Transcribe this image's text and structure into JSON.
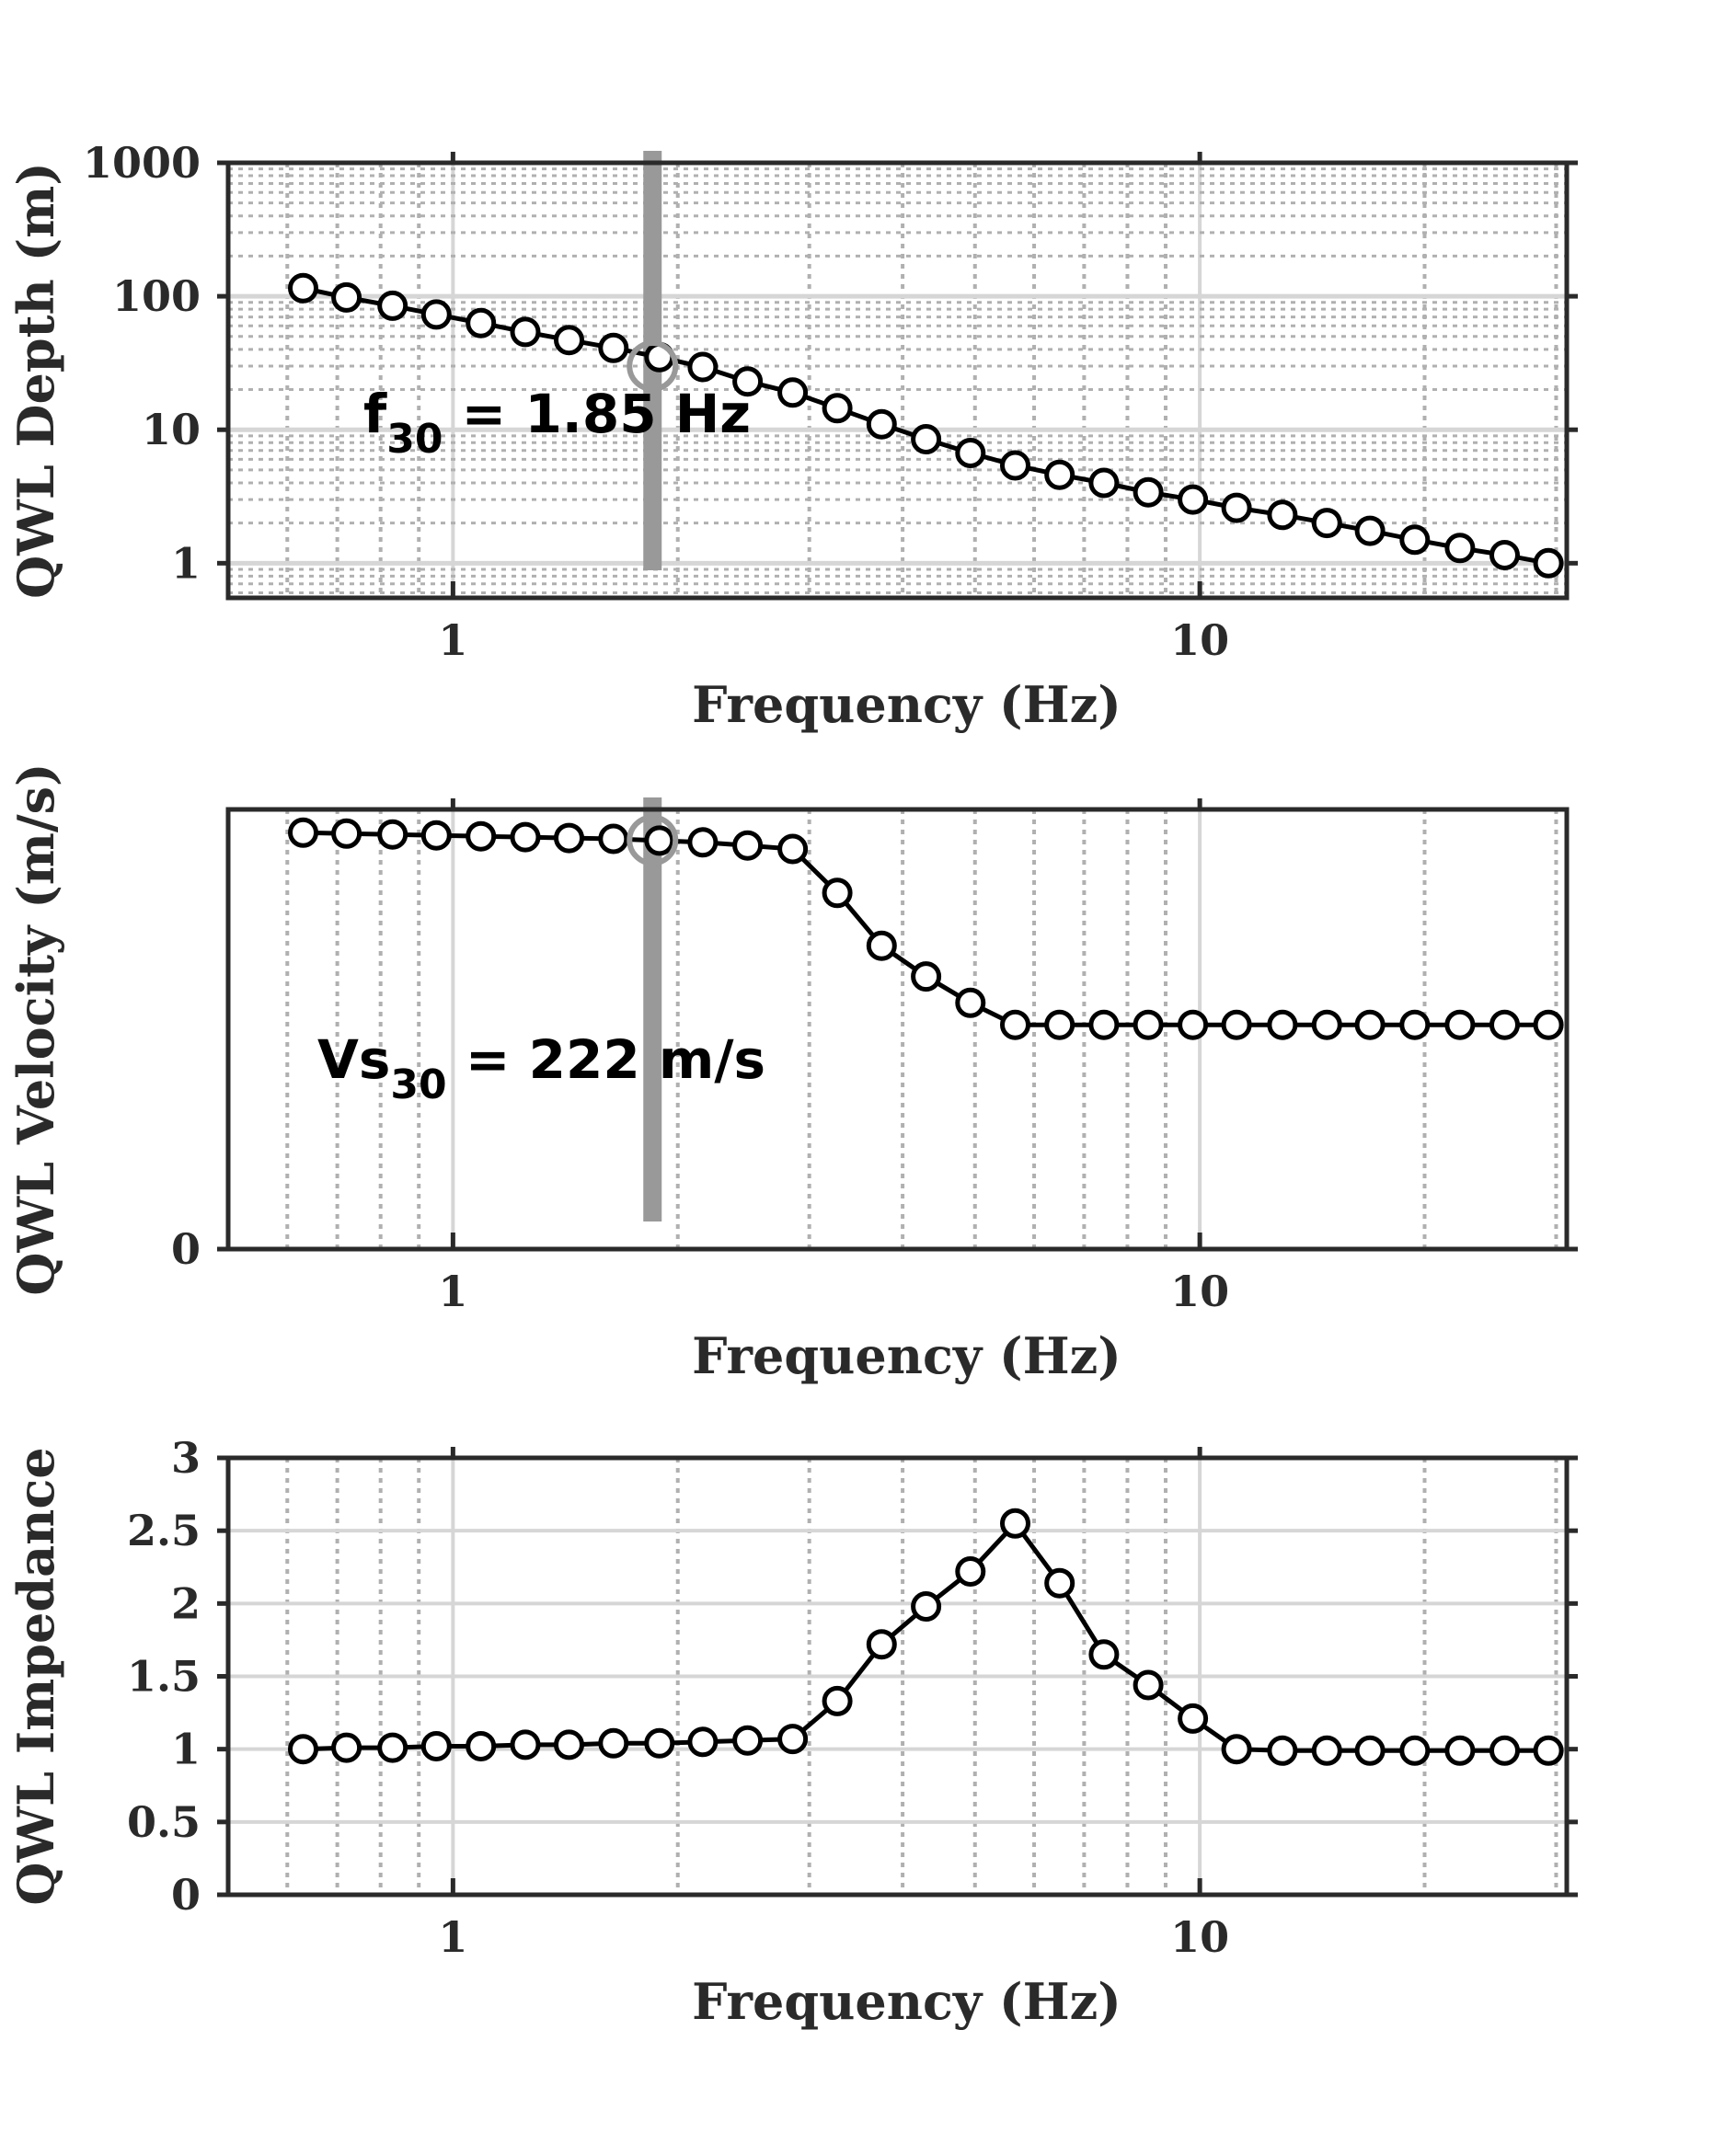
{
  "colors": {
    "axis": "#2a2a2a",
    "major_grid": "#d6d6d6",
    "minor_grid": "#b0b0b0",
    "marker_line": "#000000",
    "marker_fill": "#ffffff",
    "highlight": "#999999"
  },
  "chart_data": [
    {
      "type": "line",
      "xscale": "log",
      "yscale": "log",
      "xlim": [
        0.5,
        31
      ],
      "ylim": [
        0.55,
        1000
      ],
      "xlabel": "Frequency (Hz)",
      "ylabel": "QWL Depth (m)",
      "xticks": [
        {
          "value": 1,
          "label": "1"
        },
        {
          "value": 10,
          "label": "10"
        }
      ],
      "yticks": [
        {
          "value": 1,
          "label": "1"
        },
        {
          "value": 10,
          "label": "10"
        },
        {
          "value": 100,
          "label": "100"
        },
        {
          "value": 1000,
          "label": "1000"
        }
      ],
      "grid": true,
      "minor_grid_y": true,
      "x": [
        0.63,
        0.72,
        0.83,
        0.95,
        1.09,
        1.25,
        1.43,
        1.64,
        1.89,
        2.16,
        2.48,
        2.85,
        3.27,
        3.75,
        4.3,
        4.93,
        5.66,
        6.49,
        7.44,
        8.53,
        9.79,
        11.2,
        12.9,
        14.8,
        16.9,
        19.4,
        22.3,
        25.6,
        29.3
      ],
      "y": [
        115,
        98,
        85,
        73,
        63,
        54,
        47,
        41,
        35,
        29.5,
        23,
        19,
        14.5,
        11,
        8.5,
        6.7,
        5.4,
        4.6,
        4.0,
        3.4,
        3.0,
        2.6,
        2.3,
        2.0,
        1.75,
        1.5,
        1.3,
        1.15,
        1.0
      ],
      "highlight": {
        "x": 1.85,
        "y": 30
      },
      "annotation": {
        "main": "f",
        "sub": "30",
        "rest": " = 1.85 Hz"
      }
    },
    {
      "type": "line",
      "xscale": "log",
      "yscale": "linear",
      "xlim": [
        0.5,
        31
      ],
      "ylim": [
        0,
        1
      ],
      "xlabel": "Frequency (Hz)",
      "ylabel": "QWL Velocity (m/s)",
      "xticks": [
        {
          "value": 1,
          "label": "1"
        },
        {
          "value": 10,
          "label": "10"
        }
      ],
      "yticks": [
        {
          "value": 0,
          "label": "0"
        }
      ],
      "grid": true,
      "x": [
        0.63,
        0.72,
        0.83,
        0.95,
        1.09,
        1.25,
        1.43,
        1.64,
        1.89,
        2.16,
        2.48,
        2.85,
        3.27,
        3.75,
        4.3,
        4.93,
        5.66,
        6.49,
        7.44,
        8.53,
        9.79,
        11.2,
        12.9,
        14.8,
        16.9,
        19.4,
        22.3,
        25.6,
        29.3
      ],
      "y": [
        0.947,
        0.945,
        0.943,
        0.941,
        0.939,
        0.937,
        0.935,
        0.933,
        0.929,
        0.925,
        0.918,
        0.91,
        0.81,
        0.69,
        0.62,
        0.56,
        0.51,
        0.51,
        0.51,
        0.51,
        0.51,
        0.51,
        0.51,
        0.51,
        0.51,
        0.51,
        0.51,
        0.51,
        0.51
      ],
      "highlight": {
        "x": 1.85,
        "y": 0.93
      },
      "annotation": {
        "main": "Vs",
        "sub": "30",
        "rest": " = 222 m/s"
      }
    },
    {
      "type": "line",
      "xscale": "log",
      "yscale": "linear",
      "xlim": [
        0.5,
        31
      ],
      "ylim": [
        0,
        3
      ],
      "xlabel": "Frequency (Hz)",
      "ylabel": "QWL Impedance",
      "xticks": [
        {
          "value": 1,
          "label": "1"
        },
        {
          "value": 10,
          "label": "10"
        }
      ],
      "yticks": [
        {
          "value": 0,
          "label": "0"
        },
        {
          "value": 0.5,
          "label": "0.5"
        },
        {
          "value": 1,
          "label": "1"
        },
        {
          "value": 1.5,
          "label": "1.5"
        },
        {
          "value": 2,
          "label": "2"
        },
        {
          "value": 2.5,
          "label": "2.5"
        },
        {
          "value": 3,
          "label": "3"
        }
      ],
      "grid": true,
      "x": [
        0.63,
        0.72,
        0.83,
        0.95,
        1.09,
        1.25,
        1.43,
        1.64,
        1.89,
        2.16,
        2.48,
        2.85,
        3.27,
        3.75,
        4.3,
        4.93,
        5.66,
        6.49,
        7.44,
        8.53,
        9.79,
        11.2,
        12.9,
        14.8,
        16.9,
        19.4,
        22.3,
        25.6,
        29.3
      ],
      "y": [
        1.0,
        1.01,
        1.01,
        1.02,
        1.02,
        1.03,
        1.03,
        1.04,
        1.04,
        1.05,
        1.06,
        1.07,
        1.33,
        1.72,
        1.98,
        2.22,
        2.55,
        2.14,
        1.65,
        1.44,
        1.21,
        1.0,
        0.99,
        0.99,
        0.99,
        0.99,
        0.99,
        0.99,
        0.99
      ]
    }
  ]
}
